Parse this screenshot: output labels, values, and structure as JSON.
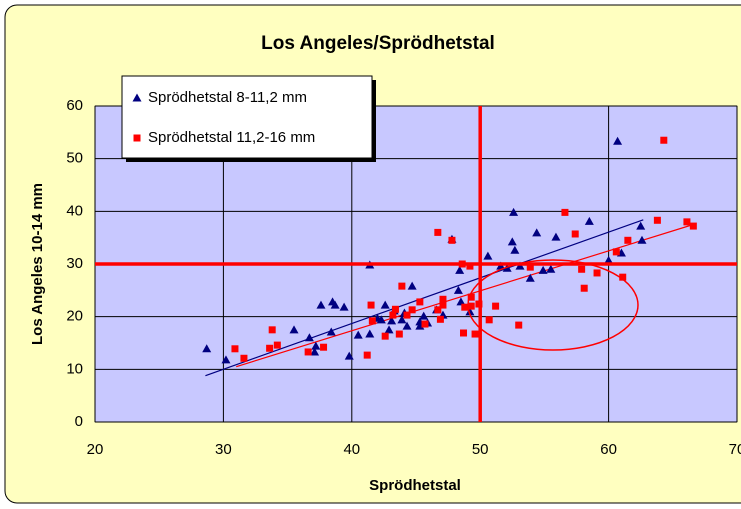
{
  "chart_data": {
    "type": "scatter",
    "title": "Los Angeles/Sprödhetstal",
    "xlabel": "Sprödhetstal",
    "ylabel": "Los Angeles 10-14 mm",
    "xlim": [
      20,
      70
    ],
    "xticks": [
      20,
      30,
      40,
      50,
      60,
      70
    ],
    "ylim": [
      0,
      60
    ],
    "yticks": [
      0,
      10,
      20,
      30,
      40,
      50,
      60
    ],
    "grid": true,
    "legend": "upper left",
    "reference_lines": {
      "x": 50,
      "y": 30,
      "color": "#ff0000"
    },
    "series": [
      {
        "name": "Sprödhetstal 8-11,2 mm",
        "color": "#000080",
        "marker": "triangle",
        "x": [
          28.7,
          30.2,
          35.5,
          36.7,
          37.1,
          37.2,
          37.6,
          38.5,
          38.7,
          38.4,
          39.4,
          39.8,
          40.5,
          41.4,
          41.4,
          42,
          42.3,
          42.6,
          42.9,
          43.1,
          43.3,
          43.9,
          44.1,
          44.3,
          44.7,
          45.3,
          45.3,
          45.6,
          45.9,
          46.6,
          47.1,
          47.8,
          48.4,
          48.3,
          48.5,
          49.2,
          50.6,
          51.6,
          52.1,
          52.5,
          52.6,
          52.7,
          53.1,
          53.9,
          54.4,
          54.9,
          55.5,
          55.9,
          58.5,
          60.7,
          61,
          62.5,
          62.6,
          60
        ],
        "values": [
          13.9,
          11.8,
          17.5,
          16,
          13.3,
          14.4,
          22.2,
          22.8,
          22.2,
          17.1,
          21.8,
          12.5,
          16.5,
          16.7,
          29.8,
          19.7,
          19.4,
          22.2,
          17.5,
          19.2,
          21.1,
          19.4,
          20.7,
          18.2,
          25.8,
          19,
          18.2,
          20.1,
          18.8,
          21.3,
          20.3,
          34.7,
          28.8,
          25,
          22.8,
          20.9,
          31.5,
          29.6,
          29.2,
          34.2,
          39.8,
          32.6,
          29.6,
          27.3,
          35.9,
          28.8,
          29,
          35.1,
          38.1,
          53.3,
          32.1,
          37.2,
          34.5,
          30.7
        ],
        "trend_x": [
          28.6,
          62.7
        ],
        "trend_y": [
          8.8,
          38.4
        ]
      },
      {
        "name": "Sprödhetstal 11,2-16 mm",
        "color": "#ff0000",
        "marker": "square",
        "x": [
          30.9,
          31.6,
          33.8,
          33.6,
          34.2,
          36.6,
          37.8,
          41.2,
          41.5,
          41.6,
          42.6,
          43.2,
          43.4,
          43.7,
          43.9,
          44.3,
          44.7,
          45.3,
          45.7,
          46.7,
          46.7,
          46.9,
          47.1,
          47.1,
          47.8,
          48.6,
          48.7,
          48.8,
          49.2,
          49.6,
          49.3,
          49.9,
          50.7,
          51.2,
          53,
          53.9,
          56.6,
          57.4,
          57.9,
          58.1,
          59.1,
          60.6,
          61.1,
          61.5,
          63.8,
          64.3,
          66.1,
          66.6,
          49.3
        ],
        "values": [
          13.9,
          12.1,
          17.5,
          14,
          14.6,
          13.3,
          14.2,
          12.7,
          22.2,
          19.2,
          16.3,
          20.3,
          21.4,
          16.7,
          25.8,
          20.3,
          21.3,
          22.8,
          18.6,
          21.3,
          36,
          19.5,
          23.3,
          22.2,
          34.5,
          30,
          16.9,
          21.8,
          29.6,
          16.7,
          22,
          22.4,
          19.4,
          22,
          18.4,
          29.4,
          39.8,
          35.7,
          29,
          25.4,
          28.3,
          32.3,
          27.5,
          34.5,
          38.3,
          53.5,
          38,
          37.2,
          23.7
        ],
        "trend_x": [
          31,
          66.6
        ],
        "trend_y": [
          10.5,
          37.5
        ]
      }
    ]
  }
}
